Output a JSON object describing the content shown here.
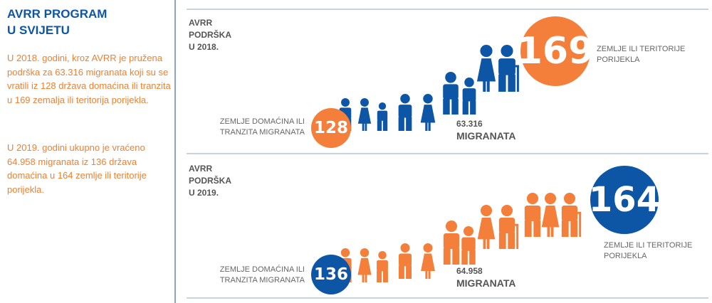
{
  "sidebar": {
    "title_line1": "AVRR PROGRAM",
    "title_line2": "U SVIJETU",
    "paragraph1": "U 2018. godini, kroz AVRR je pružena podrška za 63.316 migranata koji su se vratili iz 128 država domaćina ili tranzita u 169 zemalja ili teritorija porijekla.",
    "paragraph2": "U 2019. godini ukupno je vraćeno 64.958 migranata iz 136 država domaćina u 164 zemlje ili teritorije porijekla."
  },
  "sections": [
    {
      "label_lines": [
        "AVRR",
        "PODRŠKA",
        "U 2018."
      ],
      "origin_count": "169",
      "origin_label_lines": [
        "ZEMLJE ILI TERITORIJE",
        "PORIJEKLA"
      ],
      "host_count": "128",
      "host_label_lines": [
        "ZEMLJE DOMAĆINA ILI",
        "TRANZITA MIGRANATA"
      ],
      "migrants_count": "63.316",
      "migrants_label": "MIGRANATA",
      "people_color": "#0d56a6",
      "origin_circle_color": "#f47f3a",
      "host_circle_color": "#f47f3a"
    },
    {
      "label_lines": [
        "AVRR",
        "PODRŠKA",
        "U 2019."
      ],
      "origin_count": "164",
      "origin_label_lines": [
        "ZEMLJE ILI TERITORIJE",
        "PORIJEKLA"
      ],
      "host_count": "136",
      "host_label_lines": [
        "ZEMLJE DOMAĆINA ILI",
        "TRANZITA MIGRANATA"
      ],
      "migrants_count": "64.958",
      "migrants_label": "MIGRANATA",
      "people_color": "#f47f3a",
      "origin_circle_color": "#0d56a6",
      "host_circle_color": "#0d56a6"
    }
  ]
}
